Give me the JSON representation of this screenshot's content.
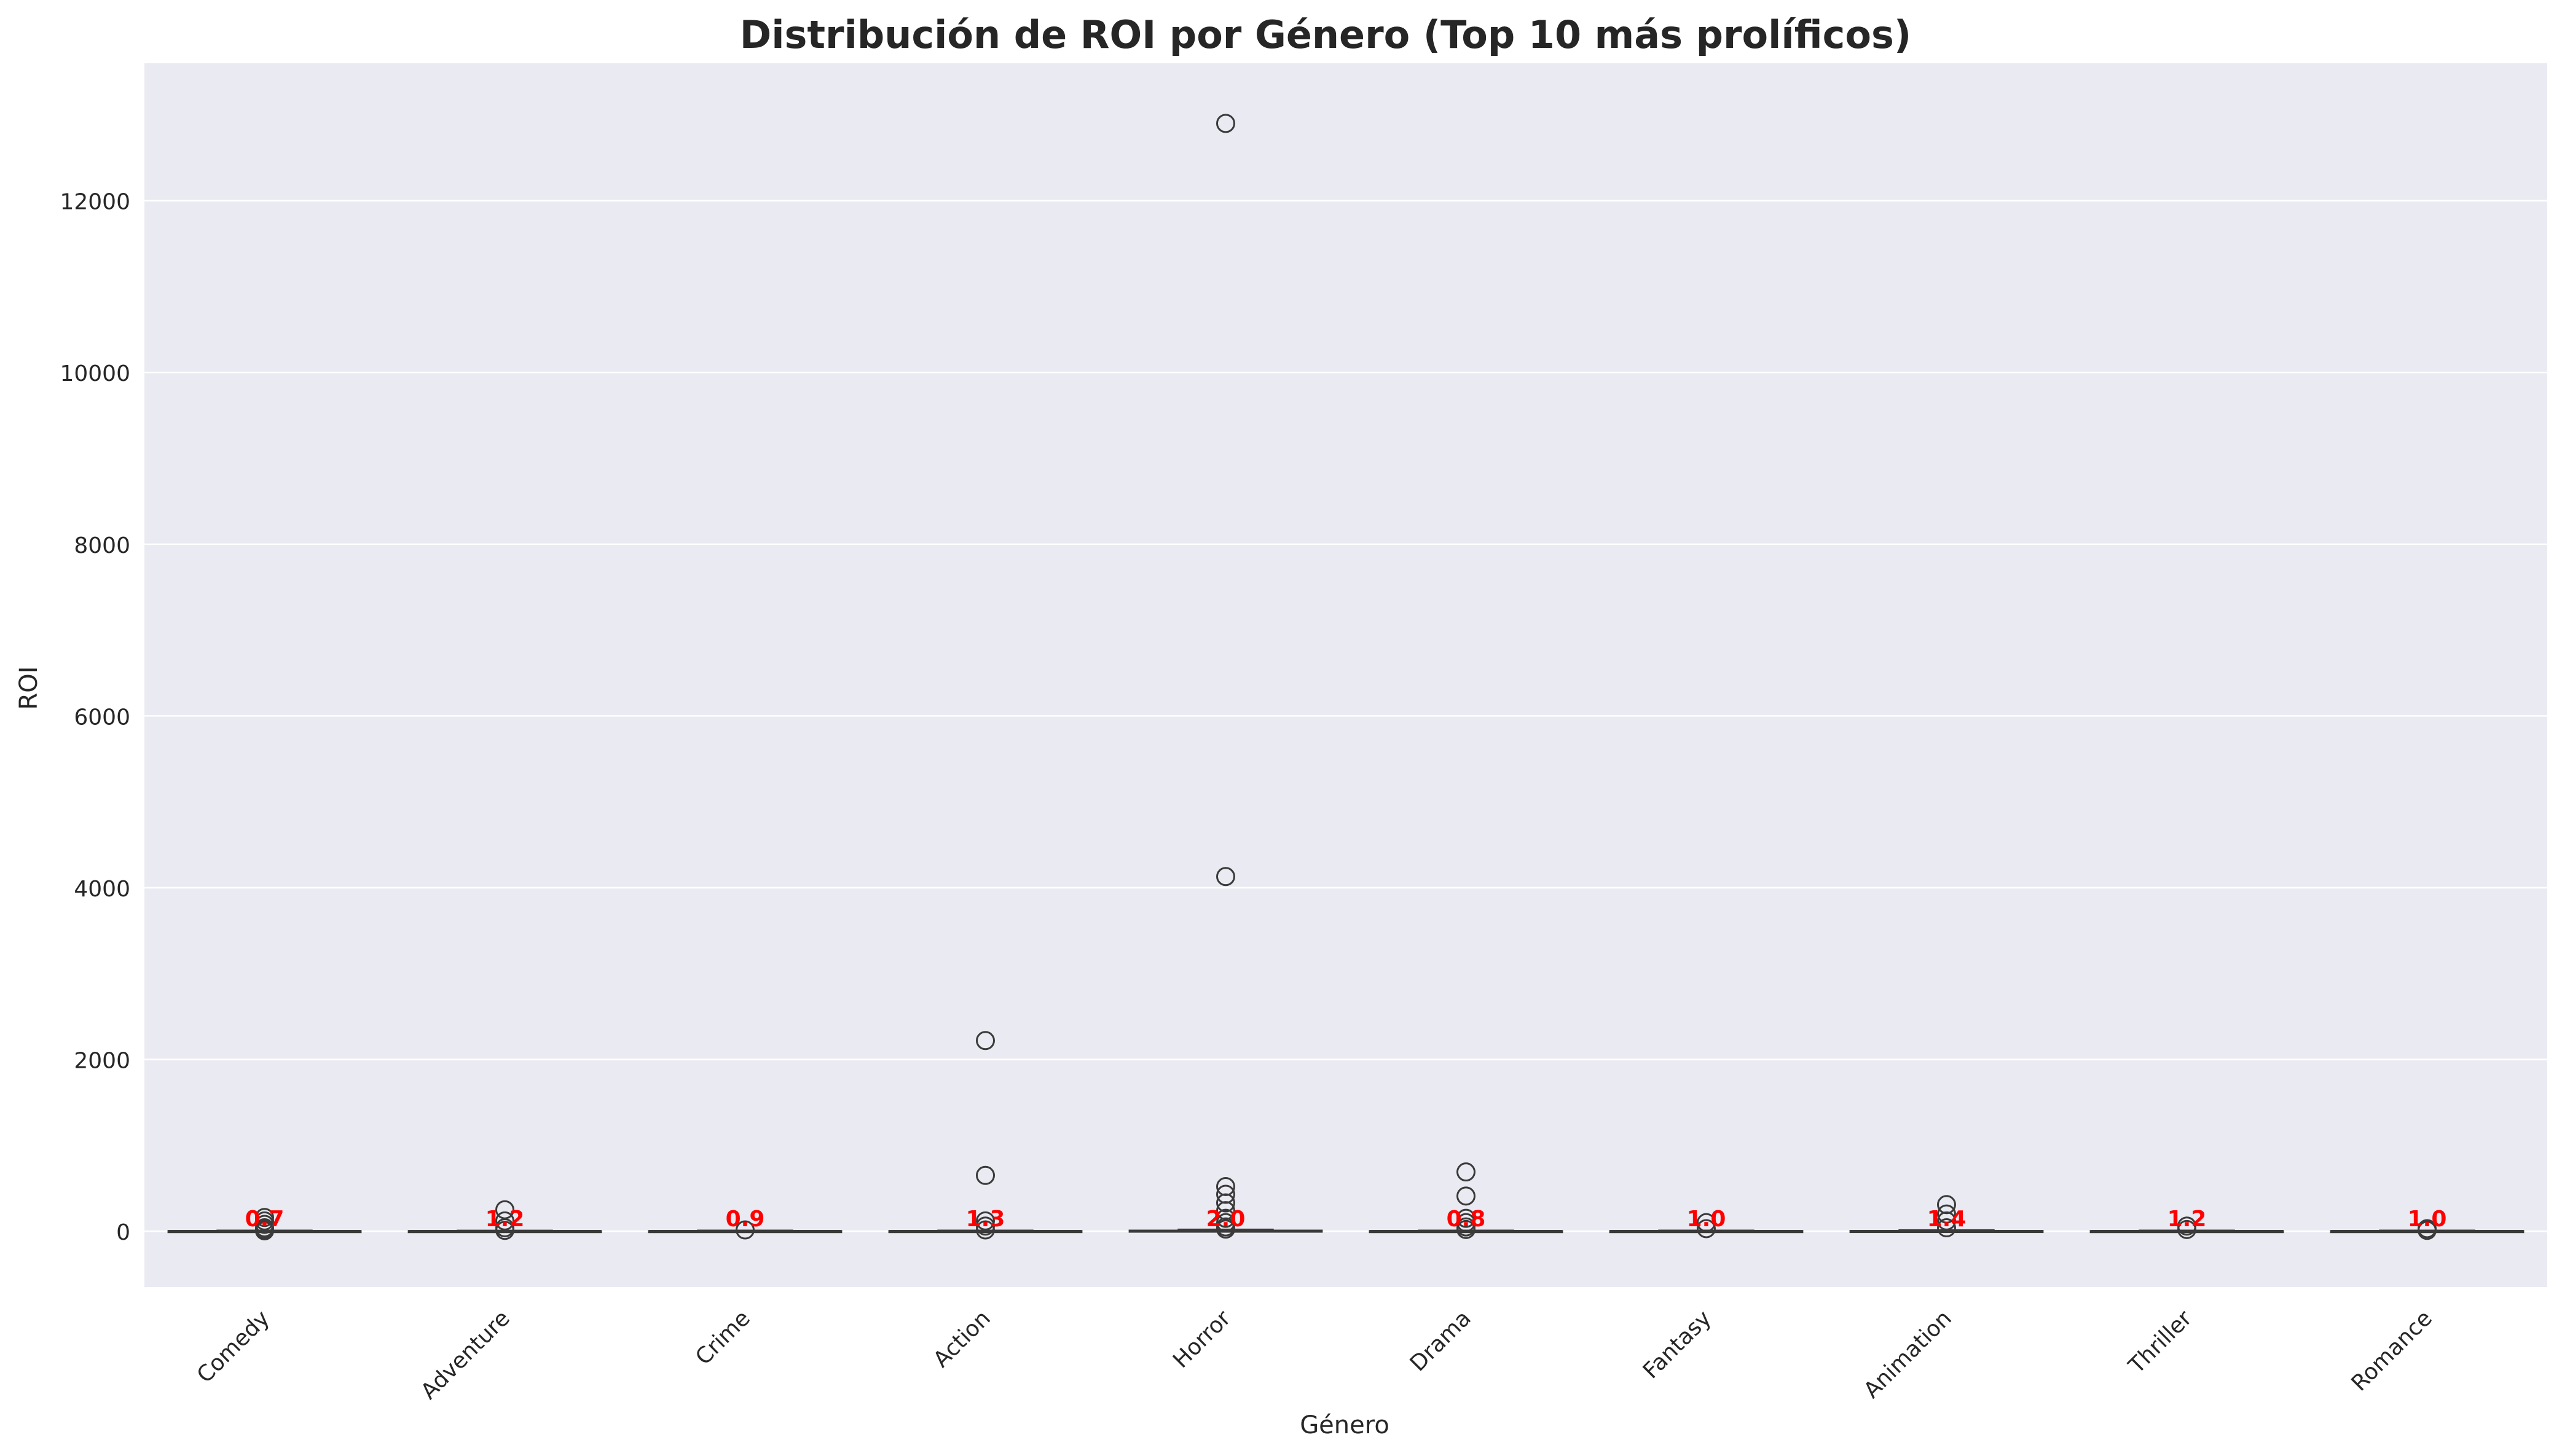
{
  "chart_data": {
    "type": "box",
    "title": "Distribución de ROI por Género (Top 10 más prolíficos)",
    "xlabel": "Género",
    "ylabel": "ROI",
    "ylim": [
      -650,
      13600
    ],
    "yticks": [
      0,
      2000,
      4000,
      6000,
      8000,
      10000,
      12000
    ],
    "grid": "horizontal",
    "background": "#eaeaf2",
    "box_color": "#3a3a3a",
    "median_label_color": "#ff0000",
    "categories": [
      "Comedy",
      "Adventure",
      "Crime",
      "Action",
      "Horror",
      "Drama",
      "Fantasy",
      "Animation",
      "Thriller",
      "Romance"
    ],
    "boxes": [
      {
        "category": "Comedy",
        "median_label": "0.7",
        "q1": -0.4,
        "median": 0.7,
        "q3": 3.0,
        "whisker_low": -1,
        "whisker_high": 8,
        "outliers": [
          160,
          120,
          80,
          40,
          20,
          5
        ]
      },
      {
        "category": "Adventure",
        "median_label": "1.2",
        "q1": -0.2,
        "median": 1.2,
        "q3": 3.0,
        "whisker_low": -1,
        "whisker_high": 7,
        "outliers": [
          250,
          120,
          40,
          10
        ]
      },
      {
        "category": "Crime",
        "median_label": "0.9",
        "q1": -0.3,
        "median": 0.9,
        "q3": 3.0,
        "whisker_low": -1,
        "whisker_high": 8,
        "outliers": [
          15
        ]
      },
      {
        "category": "Action",
        "median_label": "1.3",
        "q1": -0.1,
        "median": 1.3,
        "q3": 3.2,
        "whisker_low": -1,
        "whisker_high": 8,
        "outliers": [
          2220,
          650,
          120,
          60,
          15
        ]
      },
      {
        "category": "Horror",
        "median_label": "2.0",
        "q1": 0.3,
        "median": 2.0,
        "q3": 8.0,
        "whisker_low": -1,
        "whisker_high": 20,
        "outliers": [
          12900,
          4130,
          520,
          430,
          330,
          240,
          150,
          100,
          50,
          25
        ]
      },
      {
        "category": "Drama",
        "median_label": "0.8",
        "q1": -0.3,
        "median": 0.8,
        "q3": 3.0,
        "whisker_low": -1,
        "whisker_high": 8,
        "outliers": [
          690,
          410,
          150,
          100,
          50,
          20
        ]
      },
      {
        "category": "Fantasy",
        "median_label": "1.0",
        "q1": -0.2,
        "median": 1.0,
        "q3": 3.0,
        "whisker_low": -1,
        "whisker_high": 8,
        "outliers": [
          100,
          30
        ]
      },
      {
        "category": "Animation",
        "median_label": "1.4",
        "q1": 0.0,
        "median": 1.4,
        "q3": 4.0,
        "whisker_low": -1,
        "whisker_high": 12,
        "outliers": [
          310,
          200,
          120,
          40
        ]
      },
      {
        "category": "Thriller",
        "median_label": "1.2",
        "q1": -0.2,
        "median": 1.2,
        "q3": 3.0,
        "whisker_low": -1,
        "whisker_high": 8,
        "outliers": [
          60,
          20
        ]
      },
      {
        "category": "Romance",
        "median_label": "1.0",
        "q1": -0.2,
        "median": 1.0,
        "q3": 3.0,
        "whisker_low": -1,
        "whisker_high": 8,
        "outliers": [
          30,
          10
        ]
      }
    ]
  }
}
